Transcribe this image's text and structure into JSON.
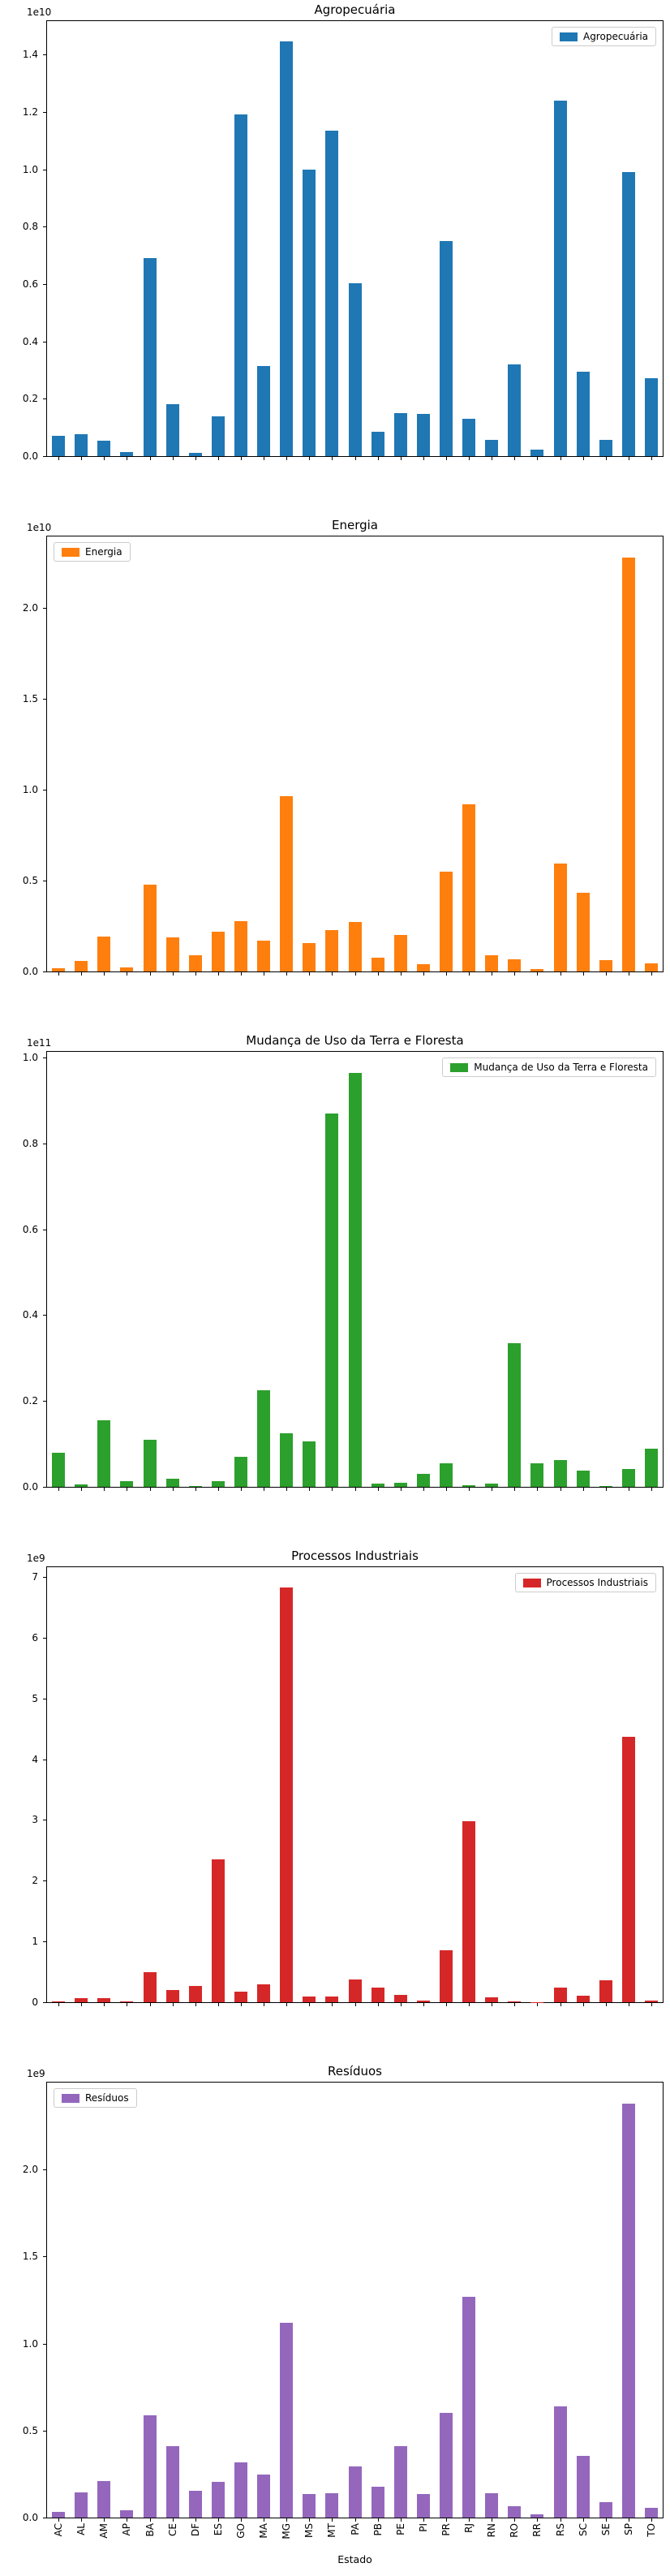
{
  "figure": {
    "xlabel": "Estado",
    "states": [
      "AC",
      "AL",
      "AM",
      "AP",
      "BA",
      "CE",
      "DF",
      "ES",
      "GO",
      "MA",
      "MG",
      "MS",
      "MT",
      "PA",
      "PB",
      "PE",
      "PI",
      "PR",
      "RJ",
      "RN",
      "RO",
      "RR",
      "RS",
      "SC",
      "SE",
      "SP",
      "TO"
    ],
    "background": "#ffffff"
  },
  "chart_data": [
    {
      "type": "bar",
      "title": "Agropecuária",
      "legend_label": "Agropecuária",
      "legend_position": "upper right",
      "color": "#1f77b4",
      "offset_label": "1e10",
      "value_unit": "1e9",
      "ylim": [
        0,
        15.17
      ],
      "grid": false,
      "yticks": [
        {
          "v": 0,
          "label": "0.0"
        },
        {
          "v": 2,
          "label": "0.2"
        },
        {
          "v": 4,
          "label": "0.4"
        },
        {
          "v": 6,
          "label": "0.6"
        },
        {
          "v": 8,
          "label": "0.8"
        },
        {
          "v": 10,
          "label": "1.0"
        },
        {
          "v": 12,
          "label": "1.2"
        },
        {
          "v": 14,
          "label": "1.4"
        }
      ],
      "values": [
        0.7,
        0.77,
        0.55,
        0.15,
        6.9,
        1.8,
        0.1,
        1.38,
        11.92,
        3.15,
        14.45,
        10.0,
        11.36,
        6.04,
        0.84,
        1.51,
        1.46,
        7.5,
        1.31,
        0.57,
        3.19,
        0.22,
        12.4,
        2.93,
        0.57,
        9.9,
        2.71
      ]
    },
    {
      "type": "bar",
      "title": "Energia",
      "legend_label": "Energia",
      "legend_position": "upper left",
      "color": "#ff7f0e",
      "offset_label": "1e10",
      "value_unit": "1e9",
      "ylim": [
        0,
        23.94
      ],
      "grid": false,
      "yticks": [
        {
          "v": 0,
          "label": "0.0"
        },
        {
          "v": 5,
          "label": "0.5"
        },
        {
          "v": 10,
          "label": "1.0"
        },
        {
          "v": 15,
          "label": "1.5"
        },
        {
          "v": 20,
          "label": "2.0"
        }
      ],
      "values": [
        0.19,
        0.56,
        1.91,
        0.24,
        4.79,
        1.88,
        0.9,
        2.18,
        2.75,
        1.68,
        9.65,
        1.57,
        2.26,
        2.72,
        0.78,
        2.03,
        0.41,
        5.48,
        9.2,
        0.88,
        0.66,
        0.15,
        5.95,
        4.34,
        0.63,
        22.8,
        0.44
      ]
    },
    {
      "type": "bar",
      "title": "Mudança de Uso da Terra e Floresta",
      "legend_label": "Mudança de Uso da Terra e Floresta",
      "legend_position": "upper right",
      "color": "#2ca02c",
      "offset_label": "1e11",
      "value_unit": "1e9",
      "ylim": [
        0,
        101.33
      ],
      "grid": false,
      "yticks": [
        {
          "v": 0,
          "label": "0.0"
        },
        {
          "v": 20,
          "label": "0.2"
        },
        {
          "v": 40,
          "label": "0.4"
        },
        {
          "v": 60,
          "label": "0.6"
        },
        {
          "v": 80,
          "label": "0.8"
        },
        {
          "v": 100,
          "label": "1.0"
        }
      ],
      "values": [
        8.0,
        0.6,
        15.5,
        1.3,
        11.0,
        1.8,
        0.2,
        1.3,
        7.0,
        22.5,
        12.5,
        10.5,
        87.0,
        96.5,
        0.7,
        0.9,
        3.0,
        5.5,
        0.4,
        0.7,
        33.5,
        5.5,
        6.3,
        3.7,
        0.2,
        4.2,
        8.8
      ]
    },
    {
      "type": "bar",
      "title": "Processos Industriais",
      "legend_label": "Processos Industriais",
      "legend_position": "upper right",
      "color": "#d62728",
      "offset_label": "1e9",
      "value_unit": "1e9",
      "ylim": [
        0,
        7.16
      ],
      "grid": false,
      "yticks": [
        {
          "v": 0,
          "label": "0"
        },
        {
          "v": 1,
          "label": "1"
        },
        {
          "v": 2,
          "label": "2"
        },
        {
          "v": 3,
          "label": "3"
        },
        {
          "v": 4,
          "label": "4"
        },
        {
          "v": 5,
          "label": "5"
        },
        {
          "v": 6,
          "label": "6"
        },
        {
          "v": 7,
          "label": "7"
        }
      ],
      "values": [
        0.01,
        0.07,
        0.07,
        0.01,
        0.5,
        0.2,
        0.27,
        2.35,
        0.17,
        0.3,
        6.82,
        0.1,
        0.1,
        0.38,
        0.24,
        0.12,
        0.03,
        0.85,
        2.98,
        0.08,
        0.02,
        0.005,
        0.24,
        0.11,
        0.36,
        4.37,
        0.03
      ]
    },
    {
      "type": "bar",
      "title": "Resíduos",
      "legend_label": "Resíduos",
      "legend_position": "upper left",
      "color": "#9467bd",
      "offset_label": "1e9",
      "value_unit": "1e9",
      "ylim": [
        0,
        2.5
      ],
      "grid": false,
      "yticks": [
        {
          "v": 0,
          "label": "0.0"
        },
        {
          "v": 0.5,
          "label": "0.5"
        },
        {
          "v": 1.0,
          "label": "1.0"
        },
        {
          "v": 1.5,
          "label": "1.5"
        },
        {
          "v": 2.0,
          "label": "2.0"
        }
      ],
      "values": [
        0.035,
        0.145,
        0.21,
        0.04,
        0.59,
        0.41,
        0.155,
        0.205,
        0.315,
        0.245,
        1.12,
        0.135,
        0.14,
        0.295,
        0.175,
        0.41,
        0.135,
        0.6,
        1.27,
        0.14,
        0.065,
        0.02,
        0.64,
        0.355,
        0.09,
        2.38,
        0.055
      ]
    }
  ]
}
